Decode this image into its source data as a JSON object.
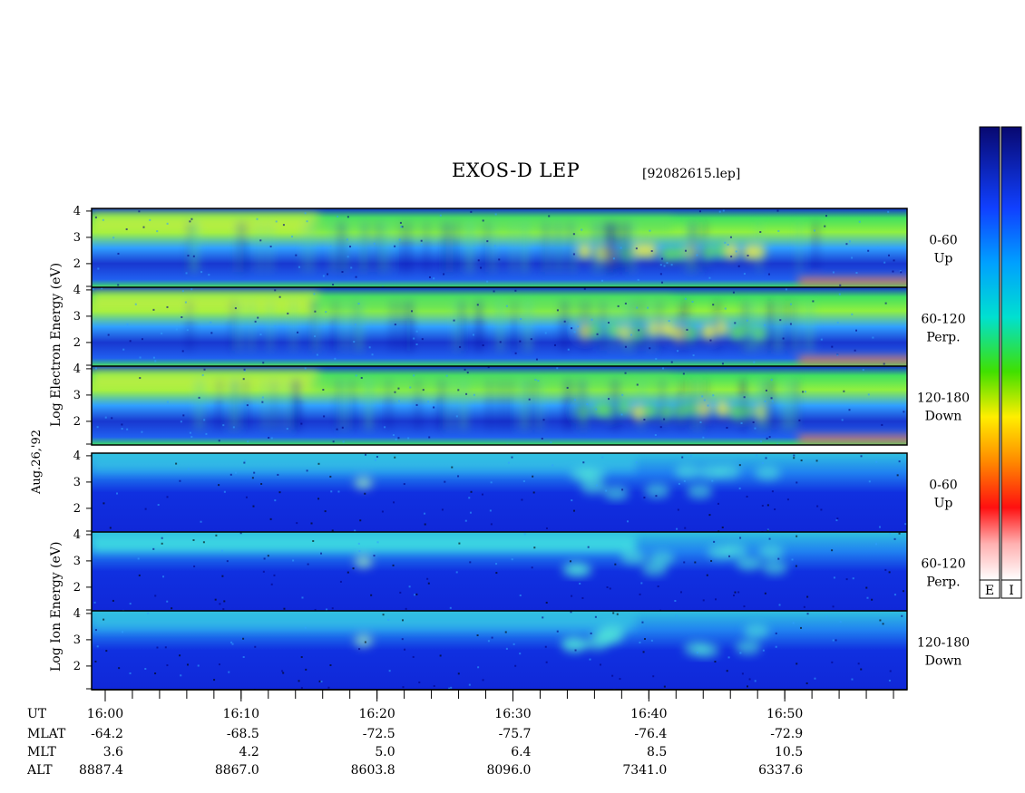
{
  "title": "EXOS-D LEP",
  "file_label": "[92082615.lep]",
  "date_label": "Aug.26,'92",
  "colorbar": {
    "labels": [
      "E",
      "I"
    ]
  },
  "chart_data": {
    "type": "heatmap",
    "description_of_axes": "time-energy spectrograms",
    "x_time_ticks": [
      "16:00",
      "16:10",
      "16:20",
      "16:30",
      "16:40",
      "16:50"
    ],
    "x_range": [
      "15:59",
      "16:59"
    ],
    "ephemeris": {
      "row_labels": [
        "UT",
        "MLAT",
        "MLT",
        "ALT"
      ],
      "MLAT": [
        "-64.2",
        "-68.5",
        "-72.5",
        "-75.7",
        "-76.4",
        "-72.9"
      ],
      "MLT": [
        "3.6",
        "4.2",
        "5.0",
        "6.4",
        "8.5",
        "10.5"
      ],
      "ALT": [
        "8887.4",
        "8867.0",
        "8603.8",
        "8096.0",
        "7341.0",
        "6337.6"
      ]
    },
    "groups": [
      {
        "name": "Electron",
        "ylabel": [
          "Log",
          "Electron",
          "Energy",
          "(eV)"
        ],
        "panels": [
          {
            "pitch": "0-60",
            "dir": "Up",
            "yticks": [
              "2",
              "3",
              "4"
            ]
          },
          {
            "pitch": "60-120",
            "dir": "Perp.",
            "yticks": [
              "2",
              "3",
              "4"
            ]
          },
          {
            "pitch": "120-180",
            "dir": "Down",
            "yticks": [
              "2",
              "3",
              "4"
            ]
          }
        ]
      },
      {
        "name": "Ion",
        "ylabel": [
          "Log",
          "Ion",
          "Energy",
          "(eV)"
        ],
        "panels": [
          {
            "pitch": "0-60",
            "dir": "Up",
            "yticks": [
              "2",
              "3",
              "4"
            ]
          },
          {
            "pitch": "60-120",
            "dir": "Perp.",
            "yticks": [
              "2",
              "3",
              "4"
            ]
          },
          {
            "pitch": "120-180",
            "dir": "Down",
            "yticks": [
              "2",
              "3",
              "4"
            ]
          }
        ]
      }
    ],
    "yrange_log_eV": [
      1.1,
      4.1
    ]
  }
}
